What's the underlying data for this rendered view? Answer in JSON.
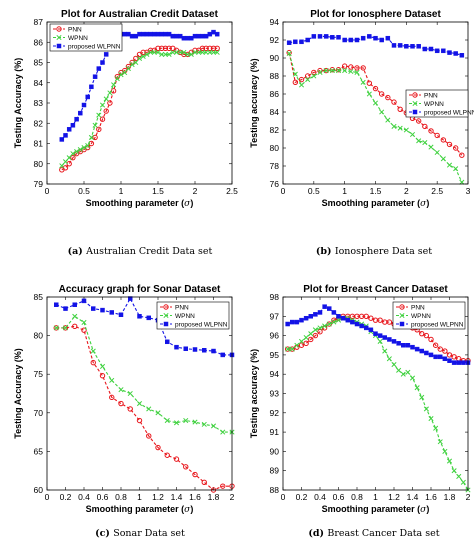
{
  "series_styles": {
    "PNN": {
      "color": "#e8151b",
      "marker": "circle"
    },
    "WPNN": {
      "color": "#3fd13f",
      "marker": "x"
    },
    "proposed WLPNN": {
      "color": "#1313e6",
      "marker": "square"
    }
  },
  "chart_data": [
    {
      "type": "line",
      "title": "Plot for Australian Credit Dataset",
      "xlabel": "Smoothing parameter",
      "xlabel_symbol": "σ",
      "ylabel": "Testing Accuracy (%)",
      "caption_letter": "(a)",
      "caption_text": "Australian Credit Data set",
      "xlim": [
        0,
        2.5
      ],
      "ylim": [
        79,
        87
      ],
      "xticks": [
        "0",
        "0.5",
        "1",
        "1.5",
        "2",
        "2.5"
      ],
      "yticks": [
        "79",
        "80",
        "81",
        "82",
        "83",
        "84",
        "85",
        "86",
        "87"
      ],
      "legend_position": "top-left",
      "series": [
        {
          "name": "PNN",
          "x": [
            0.2,
            0.25,
            0.3,
            0.35,
            0.4,
            0.45,
            0.5,
            0.55,
            0.6,
            0.65,
            0.7,
            0.75,
            0.8,
            0.85,
            0.9,
            0.95,
            1.0,
            1.05,
            1.1,
            1.15,
            1.2,
            1.25,
            1.3,
            1.35,
            1.4,
            1.45,
            1.5,
            1.55,
            1.6,
            1.65,
            1.7,
            1.75,
            1.8,
            1.85,
            1.9,
            1.95,
            2.0,
            2.05,
            2.1,
            2.15,
            2.2,
            2.25,
            2.3
          ],
          "y": [
            79.7,
            79.8,
            80.0,
            80.3,
            80.5,
            80.6,
            80.7,
            80.8,
            81.0,
            81.3,
            81.7,
            82.2,
            82.6,
            83.0,
            83.6,
            84.3,
            84.5,
            84.6,
            84.8,
            85.0,
            85.2,
            85.4,
            85.5,
            85.5,
            85.6,
            85.6,
            85.7,
            85.7,
            85.7,
            85.7,
            85.7,
            85.6,
            85.5,
            85.4,
            85.4,
            85.5,
            85.6,
            85.6,
            85.7,
            85.7,
            85.7,
            85.7,
            85.7
          ]
        },
        {
          "name": "WPNN",
          "x": [
            0.2,
            0.25,
            0.3,
            0.35,
            0.4,
            0.45,
            0.5,
            0.55,
            0.6,
            0.65,
            0.7,
            0.75,
            0.8,
            0.85,
            0.9,
            0.95,
            1.0,
            1.05,
            1.1,
            1.15,
            1.2,
            1.25,
            1.3,
            1.35,
            1.4,
            1.45,
            1.5,
            1.55,
            1.6,
            1.65,
            1.7,
            1.75,
            1.8,
            1.85,
            1.9,
            1.95,
            2.0,
            2.05,
            2.1,
            2.15,
            2.2,
            2.25,
            2.3
          ],
          "y": [
            79.9,
            80.1,
            80.3,
            80.5,
            80.6,
            80.7,
            80.8,
            80.9,
            81.3,
            81.9,
            82.4,
            82.9,
            83.2,
            83.5,
            83.9,
            84.2,
            84.4,
            84.5,
            84.7,
            84.9,
            85.0,
            85.2,
            85.3,
            85.4,
            85.5,
            85.5,
            85.5,
            85.4,
            85.4,
            85.4,
            85.5,
            85.5,
            85.5,
            85.5,
            85.4,
            85.4,
            85.5,
            85.5,
            85.5,
            85.5,
            85.5,
            85.5,
            85.5
          ]
        },
        {
          "name": "proposed WLPNN",
          "x": [
            0.2,
            0.25,
            0.3,
            0.35,
            0.4,
            0.45,
            0.5,
            0.55,
            0.6,
            0.65,
            0.7,
            0.75,
            0.8,
            0.85,
            0.9,
            0.95,
            1.0,
            1.05,
            1.1,
            1.15,
            1.2,
            1.25,
            1.3,
            1.35,
            1.4,
            1.45,
            1.5,
            1.55,
            1.6,
            1.65,
            1.7,
            1.75,
            1.8,
            1.85,
            1.9,
            1.95,
            2.0,
            2.05,
            2.1,
            2.15,
            2.2,
            2.25,
            2.3
          ],
          "y": [
            81.2,
            81.4,
            81.7,
            81.9,
            82.2,
            82.5,
            82.9,
            83.3,
            83.8,
            84.3,
            84.7,
            85.0,
            85.4,
            85.8,
            86.1,
            86.3,
            86.4,
            86.4,
            86.4,
            86.3,
            86.3,
            86.4,
            86.4,
            86.4,
            86.4,
            86.4,
            86.4,
            86.4,
            86.4,
            86.4,
            86.3,
            86.3,
            86.3,
            86.2,
            86.2,
            86.2,
            86.3,
            86.3,
            86.3,
            86.3,
            86.4,
            86.5,
            86.4
          ]
        }
      ]
    },
    {
      "type": "line",
      "title": "Plot for Ionosphere Dataset",
      "xlabel": "Smoothing parameter",
      "xlabel_symbol": "σ",
      "ylabel": "Testing accuracy (%)",
      "caption_letter": "(b)",
      "caption_text": "Ionosphere Data set",
      "xlim": [
        0,
        3
      ],
      "ylim": [
        76,
        94
      ],
      "xticks": [
        "0",
        "0.5",
        "1",
        "1.5",
        "2",
        "2.5",
        "3"
      ],
      "yticks": [
        "76",
        "78",
        "80",
        "82",
        "84",
        "86",
        "88",
        "90",
        "92",
        "94"
      ],
      "legend_position": "middle-right",
      "series": [
        {
          "name": "PNN",
          "x": [
            0.1,
            0.2,
            0.3,
            0.4,
            0.5,
            0.6,
            0.7,
            0.8,
            0.9,
            1.0,
            1.1,
            1.2,
            1.3,
            1.4,
            1.5,
            1.6,
            1.7,
            1.8,
            1.9,
            2.0,
            2.1,
            2.2,
            2.3,
            2.4,
            2.5,
            2.6,
            2.7,
            2.8,
            2.9
          ],
          "y": [
            90.6,
            87.3,
            87.6,
            88.0,
            88.4,
            88.6,
            88.6,
            88.7,
            88.7,
            89.1,
            89.0,
            88.9,
            88.9,
            87.2,
            86.6,
            86.0,
            85.6,
            85.1,
            84.3,
            83.9,
            83.3,
            83.0,
            82.4,
            81.9,
            81.4,
            80.9,
            80.4,
            80.0,
            79.2
          ]
        },
        {
          "name": "WPNN",
          "x": [
            0.1,
            0.2,
            0.3,
            0.4,
            0.5,
            0.6,
            0.7,
            0.8,
            0.9,
            1.0,
            1.1,
            1.2,
            1.3,
            1.4,
            1.5,
            1.6,
            1.7,
            1.8,
            1.9,
            2.0,
            2.1,
            2.2,
            2.3,
            2.4,
            2.5,
            2.6,
            2.7,
            2.8,
            2.9
          ],
          "y": [
            90.5,
            88.2,
            87.0,
            87.6,
            88.0,
            88.4,
            88.6,
            88.6,
            88.6,
            88.6,
            88.5,
            88.4,
            87.3,
            86.0,
            85.0,
            84.0,
            83.1,
            82.4,
            82.2,
            82.0,
            81.5,
            80.8,
            80.6,
            80.1,
            79.5,
            78.8,
            78.1,
            77.7,
            76.2
          ]
        },
        {
          "name": "proposed WLPNN",
          "x": [
            0.1,
            0.2,
            0.3,
            0.4,
            0.5,
            0.6,
            0.7,
            0.8,
            0.9,
            1.0,
            1.1,
            1.2,
            1.3,
            1.4,
            1.5,
            1.6,
            1.7,
            1.8,
            1.9,
            2.0,
            2.1,
            2.2,
            2.3,
            2.4,
            2.5,
            2.6,
            2.7,
            2.8,
            2.9
          ],
          "y": [
            91.7,
            91.8,
            91.8,
            92.0,
            92.4,
            92.4,
            92.4,
            92.3,
            92.3,
            92.0,
            92.0,
            92.0,
            92.2,
            92.4,
            92.2,
            92.0,
            92.2,
            91.4,
            91.4,
            91.3,
            91.3,
            91.3,
            91.0,
            91.0,
            90.8,
            90.8,
            90.6,
            90.5,
            90.3
          ]
        }
      ]
    },
    {
      "type": "line",
      "title": "Accuracy graph for Sonar Dataset",
      "xlabel": "Smoothing parameter",
      "xlabel_symbol": "σ",
      "ylabel": "Testing Accuracy (%)",
      "caption_letter": "(c)",
      "caption_text": "Sonar Data set",
      "xlim": [
        0,
        2
      ],
      "ylim": [
        60,
        85
      ],
      "xticks": [
        "0",
        "0.2",
        "0.4",
        "0.6",
        "0.8",
        "1",
        "1.2",
        "1.4",
        "1.6",
        "1.8",
        "2"
      ],
      "yticks": [
        "60",
        "65",
        "70",
        "75",
        "80",
        "85"
      ],
      "legend_position": "top-right",
      "series": [
        {
          "name": "PNN",
          "x": [
            0.1,
            0.2,
            0.3,
            0.4,
            0.5,
            0.6,
            0.7,
            0.8,
            0.9,
            1.0,
            1.1,
            1.2,
            1.3,
            1.4,
            1.5,
            1.6,
            1.7,
            1.8,
            1.9,
            2.0
          ],
          "y": [
            81.0,
            81.0,
            81.2,
            80.7,
            76.5,
            74.8,
            72.0,
            71.2,
            70.5,
            69.0,
            67.0,
            65.5,
            64.5,
            64.0,
            63.0,
            62.0,
            61.0,
            60.0,
            60.5,
            60.5
          ]
        },
        {
          "name": "WPNN",
          "x": [
            0.1,
            0.2,
            0.3,
            0.4,
            0.5,
            0.6,
            0.7,
            0.8,
            0.9,
            1.0,
            1.1,
            1.2,
            1.3,
            1.4,
            1.5,
            1.6,
            1.7,
            1.8,
            1.9,
            2.0
          ],
          "y": [
            81.0,
            81.0,
            82.5,
            81.7,
            78.0,
            76.0,
            74.2,
            73.0,
            72.5,
            71.2,
            70.5,
            70.0,
            69.0,
            68.7,
            69.0,
            68.8,
            68.5,
            68.3,
            67.5,
            67.5
          ]
        },
        {
          "name": "proposed WLPNN",
          "x": [
            0.1,
            0.2,
            0.3,
            0.4,
            0.5,
            0.6,
            0.7,
            0.8,
            0.9,
            1.0,
            1.1,
            1.2,
            1.3,
            1.4,
            1.5,
            1.6,
            1.7,
            1.8,
            1.9,
            2.0
          ],
          "y": [
            84.0,
            83.5,
            84.0,
            84.5,
            83.5,
            83.3,
            83.0,
            82.7,
            84.8,
            82.5,
            82.3,
            82.0,
            79.2,
            78.5,
            78.3,
            78.2,
            78.1,
            78.0,
            77.5,
            77.5
          ]
        }
      ]
    },
    {
      "type": "line",
      "title": "Plot for Breast Cancer Dataset",
      "xlabel": "Smoothing parameter",
      "xlabel_symbol": "σ",
      "ylabel": "Testing accuracy (%)",
      "caption_letter": "(d)",
      "caption_text": "Breast Cancer Data set",
      "xlim": [
        0,
        2
      ],
      "ylim": [
        88,
        98
      ],
      "xticks": [
        "0",
        "0.2",
        "0.4",
        "0.6",
        "0.8",
        "1",
        "1.2",
        "1.4",
        "1.6",
        "1.8",
        "2"
      ],
      "yticks": [
        "88",
        "89",
        "90",
        "91",
        "92",
        "93",
        "94",
        "95",
        "96",
        "97",
        "98"
      ],
      "legend_position": "top-right",
      "series": [
        {
          "name": "PNN",
          "x": [
            0.05,
            0.1,
            0.15,
            0.2,
            0.25,
            0.3,
            0.35,
            0.4,
            0.45,
            0.5,
            0.55,
            0.6,
            0.65,
            0.7,
            0.75,
            0.8,
            0.85,
            0.9,
            0.95,
            1.0,
            1.05,
            1.1,
            1.15,
            1.2,
            1.25,
            1.3,
            1.35,
            1.4,
            1.45,
            1.5,
            1.55,
            1.6,
            1.65,
            1.7,
            1.75,
            1.8,
            1.85,
            1.9,
            1.95,
            2.0
          ],
          "y": [
            95.3,
            95.3,
            95.4,
            95.5,
            95.6,
            95.8,
            96.0,
            96.2,
            96.4,
            96.6,
            96.8,
            96.9,
            97.0,
            97.0,
            97.0,
            97.0,
            97.0,
            97.0,
            96.9,
            96.8,
            96.8,
            96.7,
            96.7,
            96.6,
            96.6,
            96.5,
            96.5,
            96.4,
            96.3,
            96.1,
            96.0,
            95.8,
            95.5,
            95.3,
            95.2,
            95.0,
            94.9,
            94.8,
            94.7,
            94.7
          ]
        },
        {
          "name": "WPNN",
          "x": [
            0.05,
            0.1,
            0.15,
            0.2,
            0.25,
            0.3,
            0.35,
            0.4,
            0.45,
            0.5,
            0.55,
            0.6,
            0.65,
            0.7,
            0.75,
            0.8,
            0.85,
            0.9,
            0.95,
            1.0,
            1.05,
            1.1,
            1.15,
            1.2,
            1.25,
            1.3,
            1.35,
            1.4,
            1.45,
            1.5,
            1.55,
            1.6,
            1.65,
            1.7,
            1.75,
            1.8,
            1.85,
            1.9,
            1.95,
            2.0
          ],
          "y": [
            95.3,
            95.3,
            95.5,
            95.7,
            95.9,
            96.1,
            96.3,
            96.4,
            96.5,
            96.6,
            96.7,
            96.8,
            96.9,
            96.9,
            96.8,
            96.7,
            96.6,
            96.5,
            96.2,
            96.0,
            95.7,
            95.2,
            94.8,
            94.5,
            94.2,
            94.0,
            94.1,
            93.8,
            93.3,
            92.8,
            92.2,
            91.7,
            91.2,
            90.5,
            90.0,
            89.5,
            89.0,
            88.7,
            88.4,
            88.0
          ]
        },
        {
          "name": "proposed WLPNN",
          "x": [
            0.05,
            0.1,
            0.15,
            0.2,
            0.25,
            0.3,
            0.35,
            0.4,
            0.45,
            0.5,
            0.55,
            0.6,
            0.65,
            0.7,
            0.75,
            0.8,
            0.85,
            0.9,
            0.95,
            1.0,
            1.05,
            1.1,
            1.15,
            1.2,
            1.25,
            1.3,
            1.35,
            1.4,
            1.45,
            1.5,
            1.55,
            1.6,
            1.65,
            1.7,
            1.75,
            1.8,
            1.85,
            1.9,
            1.95,
            2.0
          ],
          "y": [
            96.6,
            96.7,
            96.7,
            96.8,
            96.9,
            97.0,
            97.1,
            97.2,
            97.5,
            97.4,
            97.2,
            97.0,
            96.9,
            96.8,
            96.7,
            96.6,
            96.5,
            96.4,
            96.3,
            96.1,
            96.0,
            95.9,
            95.8,
            95.7,
            95.6,
            95.5,
            95.5,
            95.4,
            95.3,
            95.2,
            95.1,
            95.0,
            94.9,
            94.9,
            94.8,
            94.7,
            94.6,
            94.6,
            94.6,
            94.6
          ]
        }
      ]
    }
  ]
}
